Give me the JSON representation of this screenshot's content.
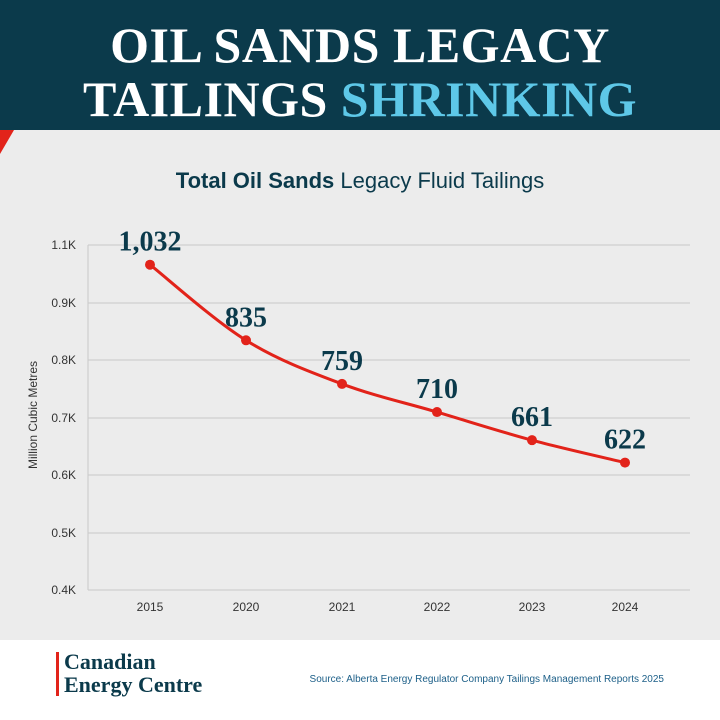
{
  "header": {
    "title_line1": "OIL SANDS LEGACY",
    "title_line2_part1": "TAILINGS",
    "title_line2_highlight": "SHRINKING"
  },
  "chart_data": {
    "type": "line",
    "title_bold": "Total Oil Sands",
    "title_regular": "Legacy Fluid Tailings",
    "xlabel": "",
    "ylabel": "Million Cubic Metres",
    "categories": [
      "2015",
      "2020",
      "2021",
      "2022",
      "2023",
      "2024"
    ],
    "values": [
      1032,
      835,
      759,
      710,
      661,
      622
    ],
    "data_labels": [
      "1,032",
      "835",
      "759",
      "710",
      "661",
      "622"
    ],
    "yticks": [
      1100,
      900,
      800,
      700,
      600,
      500,
      400
    ],
    "ytick_labels": [
      "1.1K",
      "0.9K",
      "0.8K",
      "0.7K",
      "0.6K",
      "0.5K",
      "0.4K"
    ],
    "line_color": "#e2231a",
    "label_color": "#0b3a4b",
    "grid": true
  },
  "footer": {
    "logo_line1": "Canadian",
    "logo_line2": "Energy Centre",
    "source": "Source: Alberta Energy Regulator Company Tailings Management Reports 2025"
  },
  "colors": {
    "banner": "#0b3a4b",
    "highlight": "#5ec8e8",
    "accent": "#e2231a",
    "panel": "#ececec"
  }
}
